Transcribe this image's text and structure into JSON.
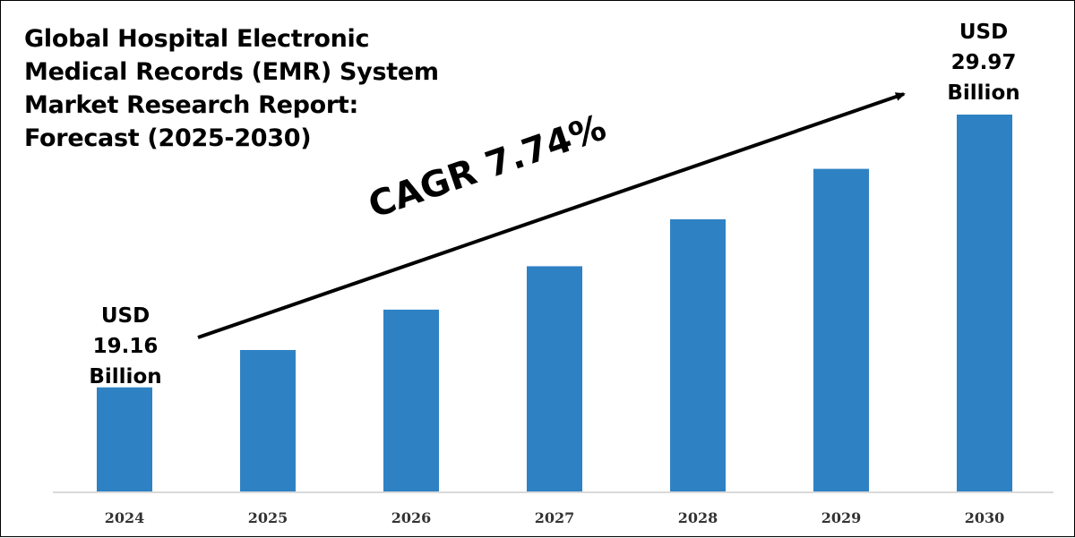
{
  "chart_data": {
    "type": "bar",
    "title_lines": [
      "Global Hospital Electronic",
      "Medical Records (EMR) System",
      "Market Research Report:",
      "Forecast (2025-2030)"
    ],
    "categories": [
      "2024",
      "2025",
      "2026",
      "2027",
      "2028",
      "2029",
      "2030"
    ],
    "values": [
      19.16,
      20.64,
      22.24,
      23.96,
      25.82,
      27.82,
      29.97
    ],
    "unit": "USD Billion",
    "ylim": [
      15.0,
      31.0
    ],
    "grid": false,
    "annotations": {
      "start": [
        "USD",
        "19.16",
        "Billion"
      ],
      "end": [
        "USD",
        "29.97",
        "Billion"
      ],
      "cagr": "CAGR 7.74%"
    },
    "colors": {
      "bar": "#2E82C4",
      "text": "#000000",
      "axis": "#D9D9D9",
      "tick": "#333333"
    }
  }
}
